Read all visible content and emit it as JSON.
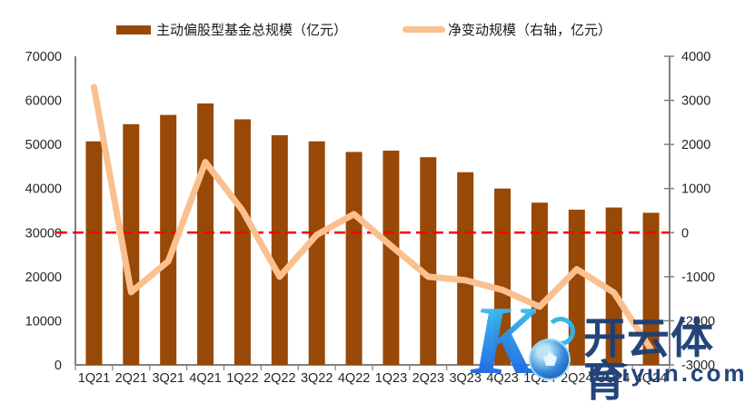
{
  "legend": {
    "items": [
      {
        "label": "主动偏股型基金总规模（亿元）",
        "type": "bar",
        "color": "#984807"
      },
      {
        "label": "净变动规模（右轴，亿元）",
        "type": "line",
        "color": "#FAC090"
      }
    ]
  },
  "chart_data": {
    "type": "bar+line",
    "categories": [
      "1Q21",
      "2Q21",
      "3Q21",
      "4Q21",
      "1Q22",
      "2Q22",
      "3Q22",
      "4Q22",
      "1Q23",
      "2Q23",
      "3Q23",
      "4Q23",
      "1Q24",
      "2Q24",
      "3Q24",
      "4Q24"
    ],
    "series": [
      {
        "name": "主动偏股型基金总规模（亿元）",
        "type": "bar",
        "axis": "left",
        "color": "#984807",
        "values": [
          50700,
          54600,
          56700,
          59300,
          55700,
          52100,
          50700,
          48300,
          48600,
          47100,
          43700,
          40000,
          36800,
          35200,
          35700,
          34500
        ]
      },
      {
        "name": "净变动规模（右轴，亿元）",
        "type": "line",
        "axis": "right",
        "color": "#FAC090",
        "values": [
          3300,
          -1350,
          -650,
          1600,
          500,
          -1000,
          -50,
          420,
          -300,
          -1000,
          -1080,
          -1300,
          -1680,
          -830,
          -1360,
          -2650
        ]
      }
    ],
    "left_axis": {
      "min": 0,
      "max": 70000,
      "step": 10000,
      "tick_labels": [
        "0",
        "10000",
        "20000",
        "30000",
        "40000",
        "50000",
        "60000",
        "70000"
      ]
    },
    "right_axis": {
      "min": -3000,
      "max": 4000,
      "step": 1000,
      "tick_labels": [
        "-3000",
        "-2000",
        "-1000",
        "0",
        "1000",
        "2000",
        "3000",
        "4000"
      ]
    },
    "zero_line": {
      "axis": "right",
      "value": 0,
      "color": "#FF0000",
      "style": "dashed"
    },
    "axis_color": "#808080",
    "label_color": "#262626",
    "legend_position": "top",
    "grid": false
  },
  "watermark": {
    "logo_letter": "K",
    "ball_icon": "soccer-ball",
    "title": "开云体育",
    "domain": "koiyun.com",
    "text_color": "#1c3f77"
  }
}
